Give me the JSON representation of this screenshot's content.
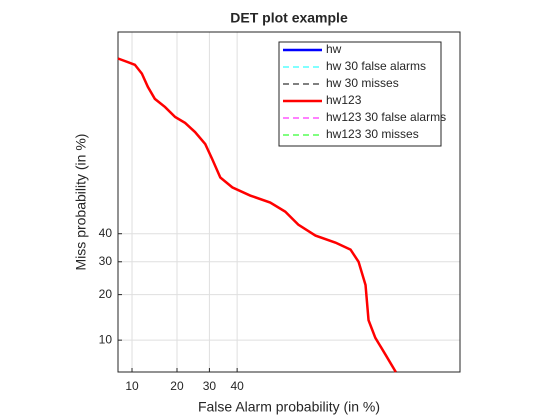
{
  "chart_data": {
    "type": "line",
    "title": "DET plot example",
    "x_label": "False Alarm probability (in %)",
    "y_label": "Miss probability (in %)",
    "scale": "probit",
    "xlim": [
      7.8,
      97.3
    ],
    "ylim": [
      5.6,
      95.5
    ],
    "xticks": [
      10,
      20,
      30,
      40
    ],
    "yticks": [
      10,
      20,
      30,
      40
    ],
    "grid": true,
    "legend": "northeast",
    "series": [
      {
        "name": "hw",
        "color": "#0000ff",
        "linestyle": "solid"
      },
      {
        "name": "hw 30 false alarms",
        "color": "#00ffff",
        "linestyle": "dashed"
      },
      {
        "name": "hw 30 misses",
        "color": "#000000",
        "linestyle": "dashed"
      },
      {
        "name": "hw123",
        "color": "#ff0000",
        "linestyle": "solid",
        "x": [
          7.8,
          10.5,
          11.8,
          13.0,
          14.5,
          16.9,
          19.5,
          22.3,
          25.3,
          28.6,
          31.0,
          33.8,
          38.2,
          45.0,
          52.8,
          58.6,
          63.5,
          69.6,
          76.1,
          80.4,
          82.5,
          84.2,
          84.9,
          86.4,
          88.5,
          90.3
        ],
        "values": [
          92.5,
          91.6,
          90.2,
          87.8,
          85.3,
          83.4,
          80.9,
          79.3,
          76.7,
          73.0,
          67.9,
          61.4,
          57.7,
          54.6,
          51.9,
          48.4,
          43.4,
          39.3,
          36.7,
          34.2,
          30.0,
          22.7,
          13.8,
          10.4,
          7.7,
          5.6
        ]
      },
      {
        "name": "hw123 30 false alarms",
        "color": "#ff00ff",
        "linestyle": "dashed"
      },
      {
        "name": "hw123 30 misses",
        "color": "#00ff00",
        "linestyle": "dashed"
      }
    ]
  }
}
